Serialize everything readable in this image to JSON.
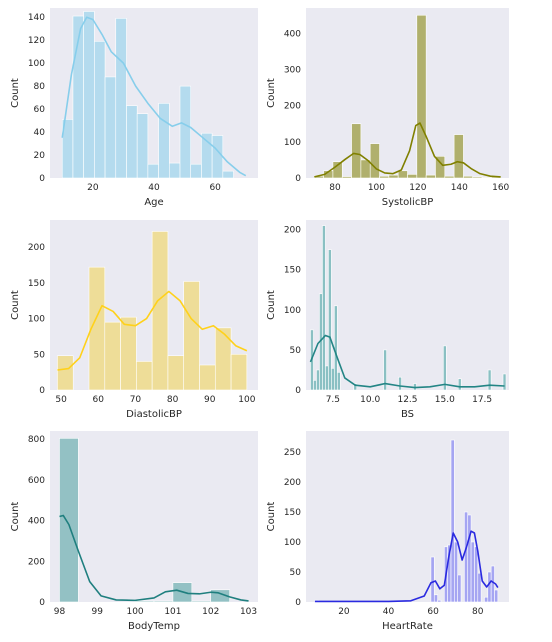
{
  "chart_data": [
    {
      "type": "bar",
      "title": "",
      "xlabel": "Age",
      "ylabel": "Count",
      "xlim": [
        6,
        74
      ],
      "ylim": [
        0,
        148
      ],
      "xticks": [
        20,
        40,
        60
      ],
      "yticks": [
        0,
        20,
        40,
        60,
        80,
        100,
        120,
        140
      ],
      "bar_color": "#87ceeb",
      "kde_color": "#87ceeb",
      "bins": [
        {
          "x0": 10,
          "x1": 13.5,
          "count": 51
        },
        {
          "x0": 13.5,
          "x1": 17,
          "count": 141
        },
        {
          "x0": 17,
          "x1": 20.5,
          "count": 145
        },
        {
          "x0": 20.5,
          "x1": 24,
          "count": 119
        },
        {
          "x0": 24,
          "x1": 27.5,
          "count": 88
        },
        {
          "x0": 27.5,
          "x1": 31,
          "count": 139
        },
        {
          "x0": 31,
          "x1": 34.5,
          "count": 63
        },
        {
          "x0": 34.5,
          "x1": 38,
          "count": 56
        },
        {
          "x0": 38,
          "x1": 41.5,
          "count": 12
        },
        {
          "x0": 41.5,
          "x1": 45,
          "count": 65
        },
        {
          "x0": 45,
          "x1": 48.5,
          "count": 13
        },
        {
          "x0": 48.5,
          "x1": 52,
          "count": 80
        },
        {
          "x0": 52,
          "x1": 55.5,
          "count": 12
        },
        {
          "x0": 55.5,
          "x1": 59,
          "count": 39
        },
        {
          "x0": 59,
          "x1": 62.5,
          "count": 37
        },
        {
          "x0": 62.5,
          "x1": 66,
          "count": 6
        }
      ],
      "kde": [
        [
          10,
          35
        ],
        [
          13,
          90
        ],
        [
          16,
          130
        ],
        [
          18,
          140
        ],
        [
          20,
          138
        ],
        [
          23,
          125
        ],
        [
          26,
          110
        ],
        [
          30,
          100
        ],
        [
          34,
          80
        ],
        [
          38,
          65
        ],
        [
          42,
          52
        ],
        [
          46,
          45
        ],
        [
          49,
          48
        ],
        [
          52,
          44
        ],
        [
          56,
          35
        ],
        [
          60,
          26
        ],
        [
          64,
          14
        ],
        [
          68,
          5
        ],
        [
          70,
          2
        ]
      ]
    },
    {
      "type": "bar",
      "title": "",
      "xlabel": "SystolicBP",
      "ylabel": "Count",
      "xlim": [
        66,
        164
      ],
      "ylim": [
        0,
        470
      ],
      "xticks": [
        80,
        100,
        120,
        140,
        160
      ],
      "yticks": [
        0,
        100,
        200,
        300,
        400
      ],
      "bar_color": "#808000",
      "kde_color": "#808000",
      "bins": [
        {
          "x0": 70,
          "x1": 74.5,
          "count": 5
        },
        {
          "x0": 74.5,
          "x1": 79,
          "count": 20
        },
        {
          "x0": 79,
          "x1": 83.5,
          "count": 45
        },
        {
          "x0": 83.5,
          "x1": 88,
          "count": 4
        },
        {
          "x0": 88,
          "x1": 92.5,
          "count": 150
        },
        {
          "x0": 92.5,
          "x1": 97,
          "count": 50
        },
        {
          "x0": 97,
          "x1": 101.5,
          "count": 95
        },
        {
          "x0": 101.5,
          "x1": 106,
          "count": 5
        },
        {
          "x0": 106,
          "x1": 110.5,
          "count": 8
        },
        {
          "x0": 110.5,
          "x1": 115,
          "count": 20
        },
        {
          "x0": 115,
          "x1": 119.5,
          "count": 10
        },
        {
          "x0": 119.5,
          "x1": 124,
          "count": 450
        },
        {
          "x0": 124,
          "x1": 128.5,
          "count": 8
        },
        {
          "x0": 128.5,
          "x1": 133,
          "count": 60
        },
        {
          "x0": 133,
          "x1": 137.5,
          "count": 5
        },
        {
          "x0": 137.5,
          "x1": 142,
          "count": 120
        },
        {
          "x0": 142,
          "x1": 146.5,
          "count": 5
        },
        {
          "x0": 146.5,
          "x1": 151,
          "count": 3
        },
        {
          "x0": 151,
          "x1": 155.5,
          "count": 2
        },
        {
          "x0": 155.5,
          "x1": 160,
          "count": 3
        }
      ],
      "kde": [
        [
          70,
          3
        ],
        [
          75,
          10
        ],
        [
          80,
          30
        ],
        [
          85,
          52
        ],
        [
          89,
          68
        ],
        [
          92,
          65
        ],
        [
          96,
          48
        ],
        [
          100,
          25
        ],
        [
          104,
          14
        ],
        [
          108,
          12
        ],
        [
          112,
          22
        ],
        [
          116,
          75
        ],
        [
          119,
          145
        ],
        [
          121,
          152
        ],
        [
          124,
          115
        ],
        [
          128,
          60
        ],
        [
          132,
          35
        ],
        [
          136,
          38
        ],
        [
          139,
          45
        ],
        [
          142,
          42
        ],
        [
          146,
          25
        ],
        [
          150,
          12
        ],
        [
          155,
          5
        ],
        [
          160,
          3
        ]
      ]
    },
    {
      "type": "bar",
      "title": "",
      "xlabel": "DiastolicBP",
      "ylabel": "Count",
      "xlim": [
        47,
        103
      ],
      "ylim": [
        0,
        238
      ],
      "xticks": [
        50,
        60,
        70,
        80,
        90,
        100
      ],
      "yticks": [
        0,
        50,
        100,
        150,
        200
      ],
      "bar_color": "#f0d24e",
      "kde_color": "#ffd11a",
      "bins": [
        {
          "x0": 49,
          "x1": 53.25,
          "count": 48
        },
        {
          "x0": 57.5,
          "x1": 61.75,
          "count": 172
        },
        {
          "x0": 61.75,
          "x1": 66,
          "count": 95
        },
        {
          "x0": 66,
          "x1": 70.25,
          "count": 102
        },
        {
          "x0": 70.25,
          "x1": 74.5,
          "count": 40
        },
        {
          "x0": 74.5,
          "x1": 78.75,
          "count": 222
        },
        {
          "x0": 78.75,
          "x1": 83,
          "count": 48
        },
        {
          "x0": 83,
          "x1": 87.25,
          "count": 152
        },
        {
          "x0": 87.25,
          "x1": 91.5,
          "count": 35
        },
        {
          "x0": 91.5,
          "x1": 95.75,
          "count": 87
        },
        {
          "x0": 95.75,
          "x1": 100,
          "count": 50
        }
      ],
      "kde": [
        [
          49,
          28
        ],
        [
          52,
          30
        ],
        [
          55,
          45
        ],
        [
          58,
          85
        ],
        [
          61,
          118
        ],
        [
          64,
          110
        ],
        [
          67,
          92
        ],
        [
          70,
          90
        ],
        [
          73,
          100
        ],
        [
          76,
          125
        ],
        [
          79,
          138
        ],
        [
          82,
          125
        ],
        [
          85,
          100
        ],
        [
          88,
          85
        ],
        [
          91,
          90
        ],
        [
          94,
          78
        ],
        [
          97,
          62
        ],
        [
          100,
          55
        ]
      ]
    },
    {
      "type": "bar",
      "title": "",
      "xlabel": "BS",
      "ylabel": "Count",
      "xlim": [
        5.7,
        19.3
      ],
      "ylim": [
        0,
        212
      ],
      "xticks": [
        7.5,
        10.0,
        12.5,
        15.0,
        17.5
      ],
      "yticks": [
        0,
        50,
        100,
        150,
        200
      ],
      "bar_color": "#3a9c9c",
      "kde_color": "#238585",
      "bins": [
        {
          "x0": 6.0,
          "x1": 6.2,
          "count": 75
        },
        {
          "x0": 6.2,
          "x1": 6.4,
          "count": 12
        },
        {
          "x0": 6.4,
          "x1": 6.6,
          "count": 25
        },
        {
          "x0": 6.6,
          "x1": 6.8,
          "count": 120
        },
        {
          "x0": 6.8,
          "x1": 7.0,
          "count": 205
        },
        {
          "x0": 7.0,
          "x1": 7.2,
          "count": 30
        },
        {
          "x0": 7.2,
          "x1": 7.4,
          "count": 175
        },
        {
          "x0": 7.4,
          "x1": 7.6,
          "count": 27
        },
        {
          "x0": 7.6,
          "x1": 7.8,
          "count": 105
        },
        {
          "x0": 7.8,
          "x1": 8.0,
          "count": 22
        },
        {
          "x0": 8.9,
          "x1": 9.1,
          "count": 8
        },
        {
          "x0": 10.9,
          "x1": 11.1,
          "count": 50
        },
        {
          "x0": 11.9,
          "x1": 12.1,
          "count": 16
        },
        {
          "x0": 12.9,
          "x1": 13.1,
          "count": 8
        },
        {
          "x0": 14.9,
          "x1": 15.1,
          "count": 55
        },
        {
          "x0": 15.9,
          "x1": 16.1,
          "count": 14
        },
        {
          "x0": 17.9,
          "x1": 18.1,
          "count": 25
        },
        {
          "x0": 18.9,
          "x1": 19.1,
          "count": 20
        }
      ],
      "kde": [
        [
          6.0,
          35
        ],
        [
          6.5,
          58
        ],
        [
          7.0,
          68
        ],
        [
          7.3,
          66
        ],
        [
          7.8,
          40
        ],
        [
          8.3,
          15
        ],
        [
          9.0,
          6
        ],
        [
          10.0,
          4
        ],
        [
          11.0,
          8
        ],
        [
          12.0,
          5
        ],
        [
          13.0,
          3
        ],
        [
          14.0,
          4
        ],
        [
          15.0,
          7
        ],
        [
          16.0,
          4
        ],
        [
          17.0,
          4
        ],
        [
          18.0,
          6
        ],
        [
          19.0,
          5
        ]
      ]
    },
    {
      "type": "bar",
      "title": "",
      "xlabel": "BodyTemp",
      "ylabel": "Count",
      "xlim": [
        97.75,
        103.25
      ],
      "ylim": [
        0,
        840
      ],
      "xticks": [
        98,
        99,
        100,
        101,
        102,
        103
      ],
      "yticks": [
        0,
        200,
        400,
        600,
        800
      ],
      "bar_color": "#4a9f9f",
      "kde_color": "#1f7f7f",
      "bins": [
        {
          "x0": 98,
          "x1": 98.5,
          "count": 804
        },
        {
          "x0": 100,
          "x1": 100.5,
          "count": 5
        },
        {
          "x0": 100.5,
          "x1": 101,
          "count": 5
        },
        {
          "x0": 101,
          "x1": 101.5,
          "count": 95
        },
        {
          "x0": 101.5,
          "x1": 102,
          "count": 5
        },
        {
          "x0": 102,
          "x1": 102.5,
          "count": 60
        }
      ],
      "kde": [
        [
          98,
          420
        ],
        [
          98.1,
          425
        ],
        [
          98.25,
          380
        ],
        [
          98.5,
          250
        ],
        [
          98.8,
          100
        ],
        [
          99.1,
          30
        ],
        [
          99.5,
          10
        ],
        [
          100,
          8
        ],
        [
          100.5,
          20
        ],
        [
          100.8,
          50
        ],
        [
          101.1,
          58
        ],
        [
          101.4,
          42
        ],
        [
          101.7,
          40
        ],
        [
          102,
          48
        ],
        [
          102.2,
          45
        ],
        [
          102.5,
          25
        ],
        [
          102.8,
          10
        ],
        [
          103,
          5
        ]
      ]
    },
    {
      "type": "bar",
      "title": "",
      "xlabel": "HeartRate",
      "ylabel": "Count",
      "xlim": [
        3,
        94
      ],
      "ylim": [
        0,
        285
      ],
      "xticks": [
        20,
        40,
        60,
        80
      ],
      "yticks": [
        0,
        50,
        100,
        150,
        200,
        250
      ],
      "bar_color": "#6b6bf2",
      "kde_color": "#2a2ae0",
      "bins": [
        {
          "x0": 7,
          "x1": 8.5,
          "count": 3
        },
        {
          "x0": 59,
          "x1": 60.5,
          "count": 75
        },
        {
          "x0": 60.5,
          "x1": 62,
          "count": 12
        },
        {
          "x0": 62,
          "x1": 63.5,
          "count": 3
        },
        {
          "x0": 65,
          "x1": 66.5,
          "count": 92
        },
        {
          "x0": 66.5,
          "x1": 68,
          "count": 95
        },
        {
          "x0": 68,
          "x1": 69.5,
          "count": 270
        },
        {
          "x0": 69.5,
          "x1": 71,
          "count": 100
        },
        {
          "x0": 71,
          "x1": 72.5,
          "count": 45
        },
        {
          "x0": 74,
          "x1": 75.5,
          "count": 150
        },
        {
          "x0": 75.5,
          "x1": 77,
          "count": 145
        },
        {
          "x0": 77,
          "x1": 78.5,
          "count": 100
        },
        {
          "x0": 78.5,
          "x1": 80,
          "count": 92
        },
        {
          "x0": 80,
          "x1": 81.5,
          "count": 48
        },
        {
          "x0": 83,
          "x1": 84.5,
          "count": 8
        },
        {
          "x0": 84.5,
          "x1": 86,
          "count": 50
        },
        {
          "x0": 86,
          "x1": 87.5,
          "count": 60
        },
        {
          "x0": 87.5,
          "x1": 89,
          "count": 20
        }
      ],
      "kde": [
        [
          7,
          1
        ],
        [
          20,
          1
        ],
        [
          40,
          1
        ],
        [
          50,
          2
        ],
        [
          56,
          10
        ],
        [
          59,
          32
        ],
        [
          61,
          35
        ],
        [
          63,
          22
        ],
        [
          65,
          28
        ],
        [
          67,
          75
        ],
        [
          69,
          115
        ],
        [
          71,
          100
        ],
        [
          73,
          70
        ],
        [
          75,
          92
        ],
        [
          77,
          118
        ],
        [
          78.5,
          115
        ],
        [
          80,
          85
        ],
        [
          82,
          35
        ],
        [
          84,
          25
        ],
        [
          86,
          35
        ],
        [
          88,
          30
        ],
        [
          89,
          24
        ]
      ]
    }
  ]
}
